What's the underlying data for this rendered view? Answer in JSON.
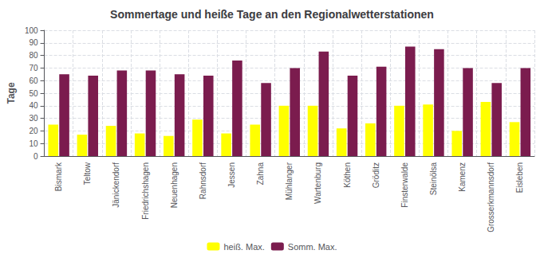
{
  "chart_data": {
    "type": "bar",
    "title": "Sommertage und heiße Tage an den Regionalwetterstationen",
    "ylabel": "Tage",
    "categories": [
      "Bismark",
      "Teltow",
      "Jänickendorf",
      "Friedrichshagen",
      "Neuenhagen",
      "Rahnsdorf",
      "Jessen",
      "Zahna",
      "Mühlanger",
      "Wartenburg",
      "Köthen",
      "Gröditz",
      "Finsterwalde",
      "Steinölsa",
      "Kamenz",
      "Grosserkmannsdorf",
      "Eisleben"
    ],
    "series": [
      {
        "name": "heiß. Max.",
        "color": "#FFFF00",
        "values": [
          25,
          17,
          24,
          18,
          16,
          29,
          18,
          25,
          40,
          40,
          22,
          26,
          40,
          41,
          20,
          43,
          27
        ]
      },
      {
        "name": "Somm. Max.",
        "color": "#7B1C4E",
        "values": [
          65,
          64,
          68,
          68,
          65,
          64,
          76,
          58,
          70,
          83,
          64,
          71,
          87,
          85,
          70,
          58,
          70
        ]
      }
    ],
    "ylim": [
      0,
      100
    ],
    "yticks": [
      0,
      10,
      20,
      30,
      40,
      50,
      60,
      70,
      80,
      90,
      100
    ],
    "grid": true,
    "legend": "bottom"
  }
}
